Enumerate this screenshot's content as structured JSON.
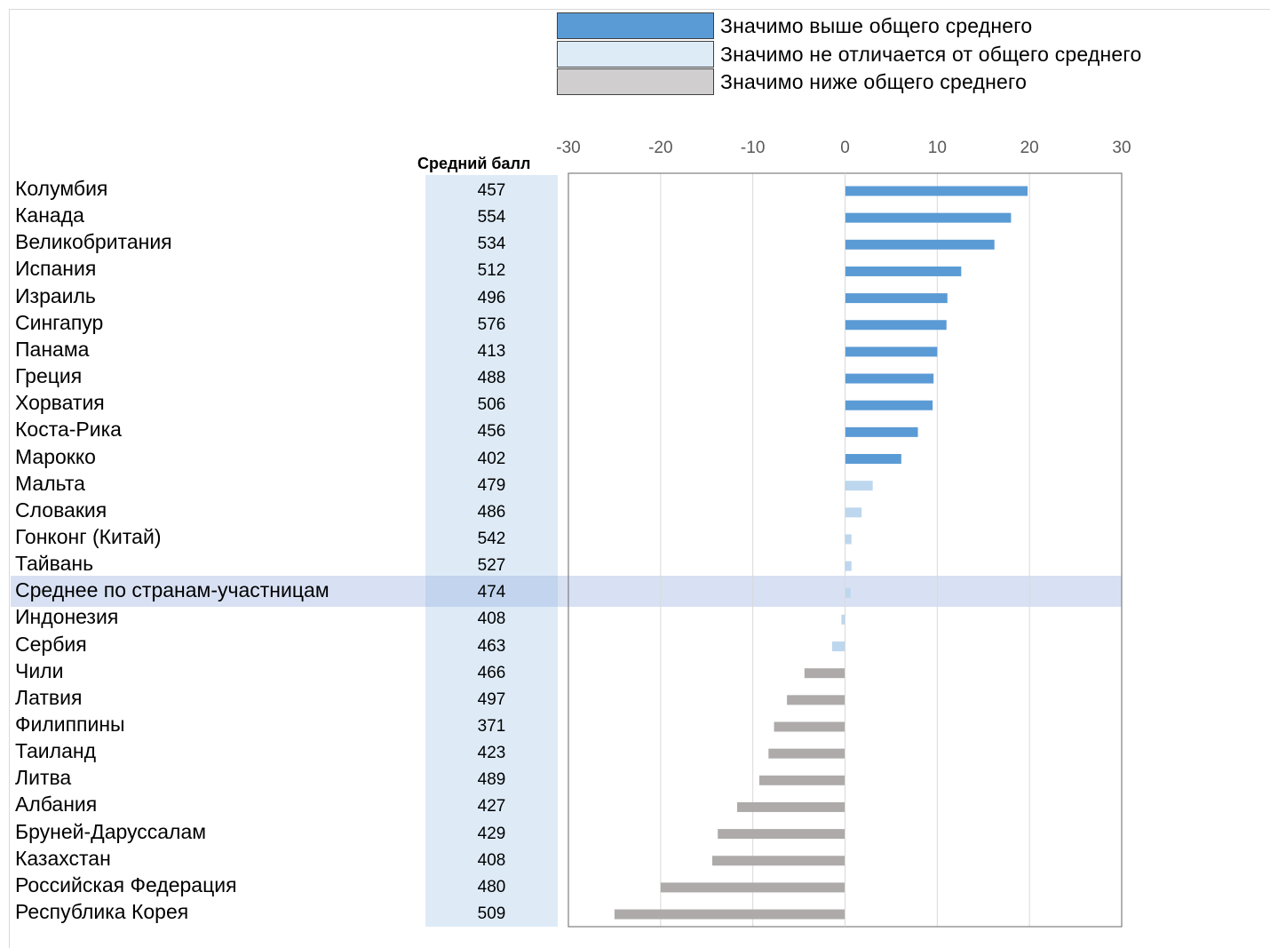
{
  "legend": [
    {
      "label": "Значимо выше общего среднего",
      "color": "#5b9bd5"
    },
    {
      "label": "Значимо не отличается от общего среднего",
      "color": "#ddebf7"
    },
    {
      "label": "Значимо ниже общего среднего",
      "color": "#d0cece"
    }
  ],
  "score_header": "Средний балл",
  "colors": {
    "above": "#5b9bd5",
    "not_different": "#bdd7ee",
    "below": "#aeaaaa",
    "score_column_bg": "#deebf7",
    "average_band": "#b4c7e7"
  },
  "chart_data": {
    "type": "bar",
    "orientation": "horizontal",
    "xlim": [
      -30,
      30
    ],
    "x_ticks": [
      -30,
      -20,
      -10,
      0,
      10,
      20,
      30
    ],
    "grid": true,
    "categories": [
      "Колумбия",
      "Канада",
      "Великобритания",
      "Испания",
      "Израиль",
      "Сингапур",
      "Панама",
      "Греция",
      "Хорватия",
      "Коста-Рика",
      "Марокко",
      "Мальта",
      "Словакия",
      "Гонконг (Китай)",
      "Тайвань",
      "Среднее по странам-участницам",
      "Индонезия",
      "Сербия",
      "Чили",
      "Латвия",
      "Филиппины",
      "Таиланд",
      "Литва",
      "Албания",
      "Бруней-Даруссалам",
      "Казахстан",
      "Российская Федерация",
      "Республика Корея"
    ],
    "scores": [
      "457",
      "554",
      "534",
      "512",
      "496",
      "576",
      "413",
      "488",
      "506",
      "456",
      "402",
      "479",
      "486",
      "542",
      "527",
      "474",
      "408",
      "463",
      "466",
      "497",
      "371",
      "423",
      "489",
      "427",
      "429",
      "408",
      "480",
      "509"
    ],
    "values": [
      19.8,
      18.0,
      16.2,
      12.6,
      11.1,
      11.0,
      10.0,
      9.6,
      9.5,
      7.9,
      6.1,
      3.0,
      1.8,
      0.7,
      0.7,
      0.6,
      -0.4,
      -1.4,
      -4.4,
      -6.3,
      -7.7,
      -8.3,
      -9.3,
      -11.7,
      -13.8,
      -14.4,
      -20.0,
      -25.0
    ],
    "significance": [
      "above",
      "above",
      "above",
      "above",
      "above",
      "above",
      "above",
      "above",
      "above",
      "above",
      "above",
      "not_different",
      "not_different",
      "not_different",
      "not_different",
      "not_different",
      "not_different",
      "not_different",
      "below",
      "below",
      "below",
      "below",
      "below",
      "below",
      "below",
      "below",
      "below",
      "below"
    ],
    "average_index": 15
  }
}
